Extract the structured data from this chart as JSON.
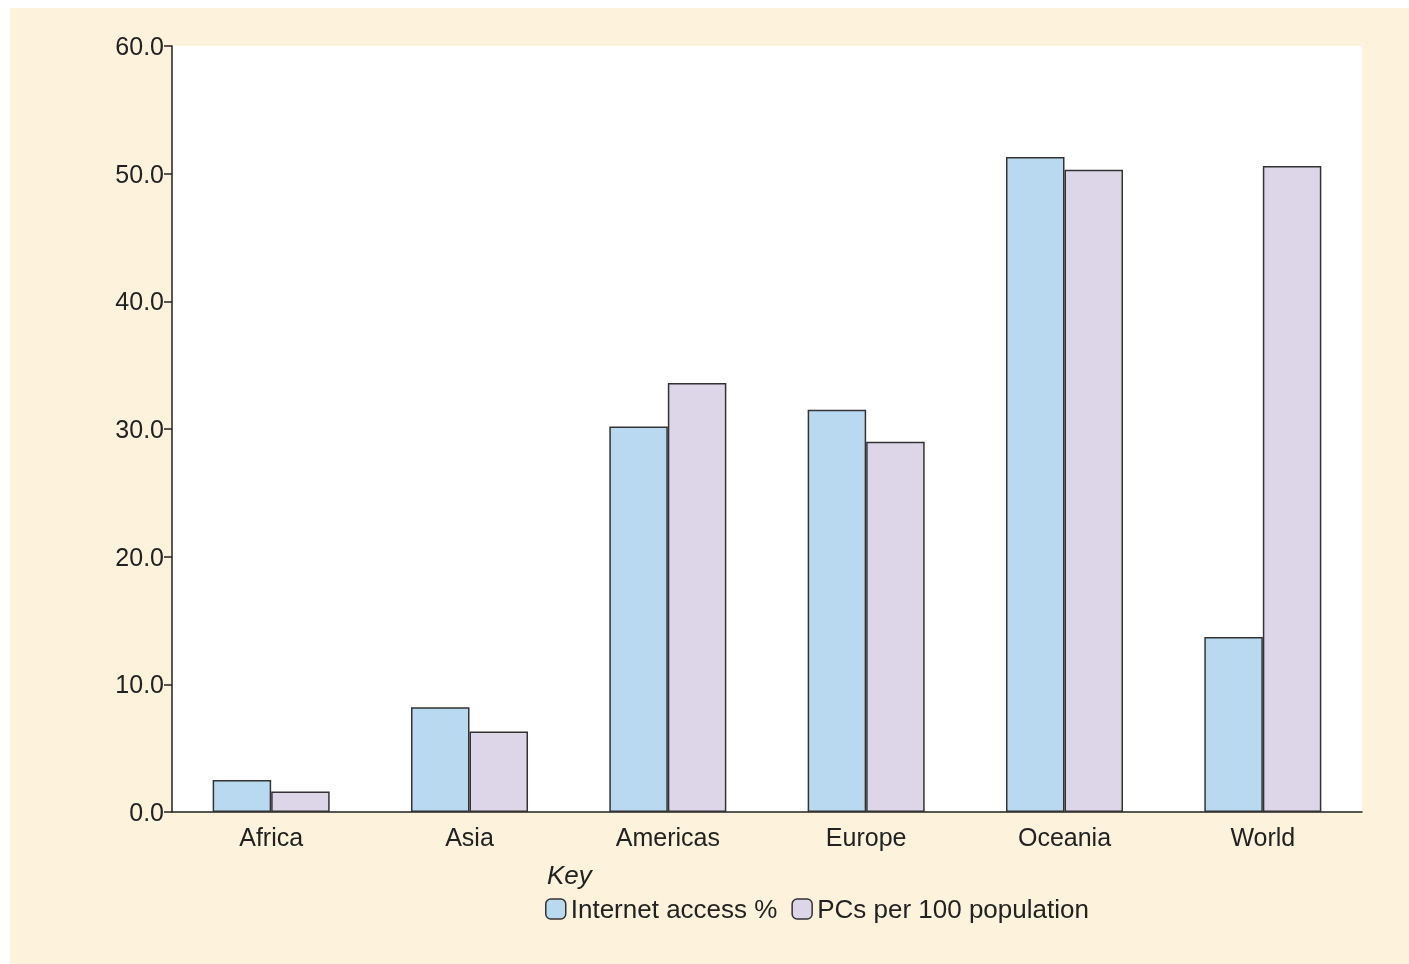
{
  "chart_data": {
    "type": "bar",
    "categories": [
      "Africa",
      "Asia",
      "Americas",
      "Europe",
      "Oceania",
      "World"
    ],
    "series": [
      {
        "name": "Internet access %",
        "color": "#b9d9f1",
        "values": [
          2.5,
          8.2,
          30.2,
          31.5,
          51.3,
          13.7
        ]
      },
      {
        "name": "PCs per 100 population",
        "color": "#ddd5e8",
        "values": [
          1.6,
          6.3,
          33.6,
          29.0,
          50.3,
          50.6
        ]
      }
    ],
    "ylim": [
      0,
      60
    ],
    "yticks": [
      {
        "value": 0,
        "label": "0.0"
      },
      {
        "value": 10,
        "label": "10.0"
      },
      {
        "value": 20,
        "label": "20.0"
      },
      {
        "value": 30,
        "label": "30.0"
      },
      {
        "value": 40,
        "label": "40.0"
      },
      {
        "value": 50,
        "label": "50.0"
      },
      {
        "value": 60,
        "label": "60.0"
      }
    ],
    "legend_title": "Key",
    "legend": "bottom",
    "grid": false
  }
}
